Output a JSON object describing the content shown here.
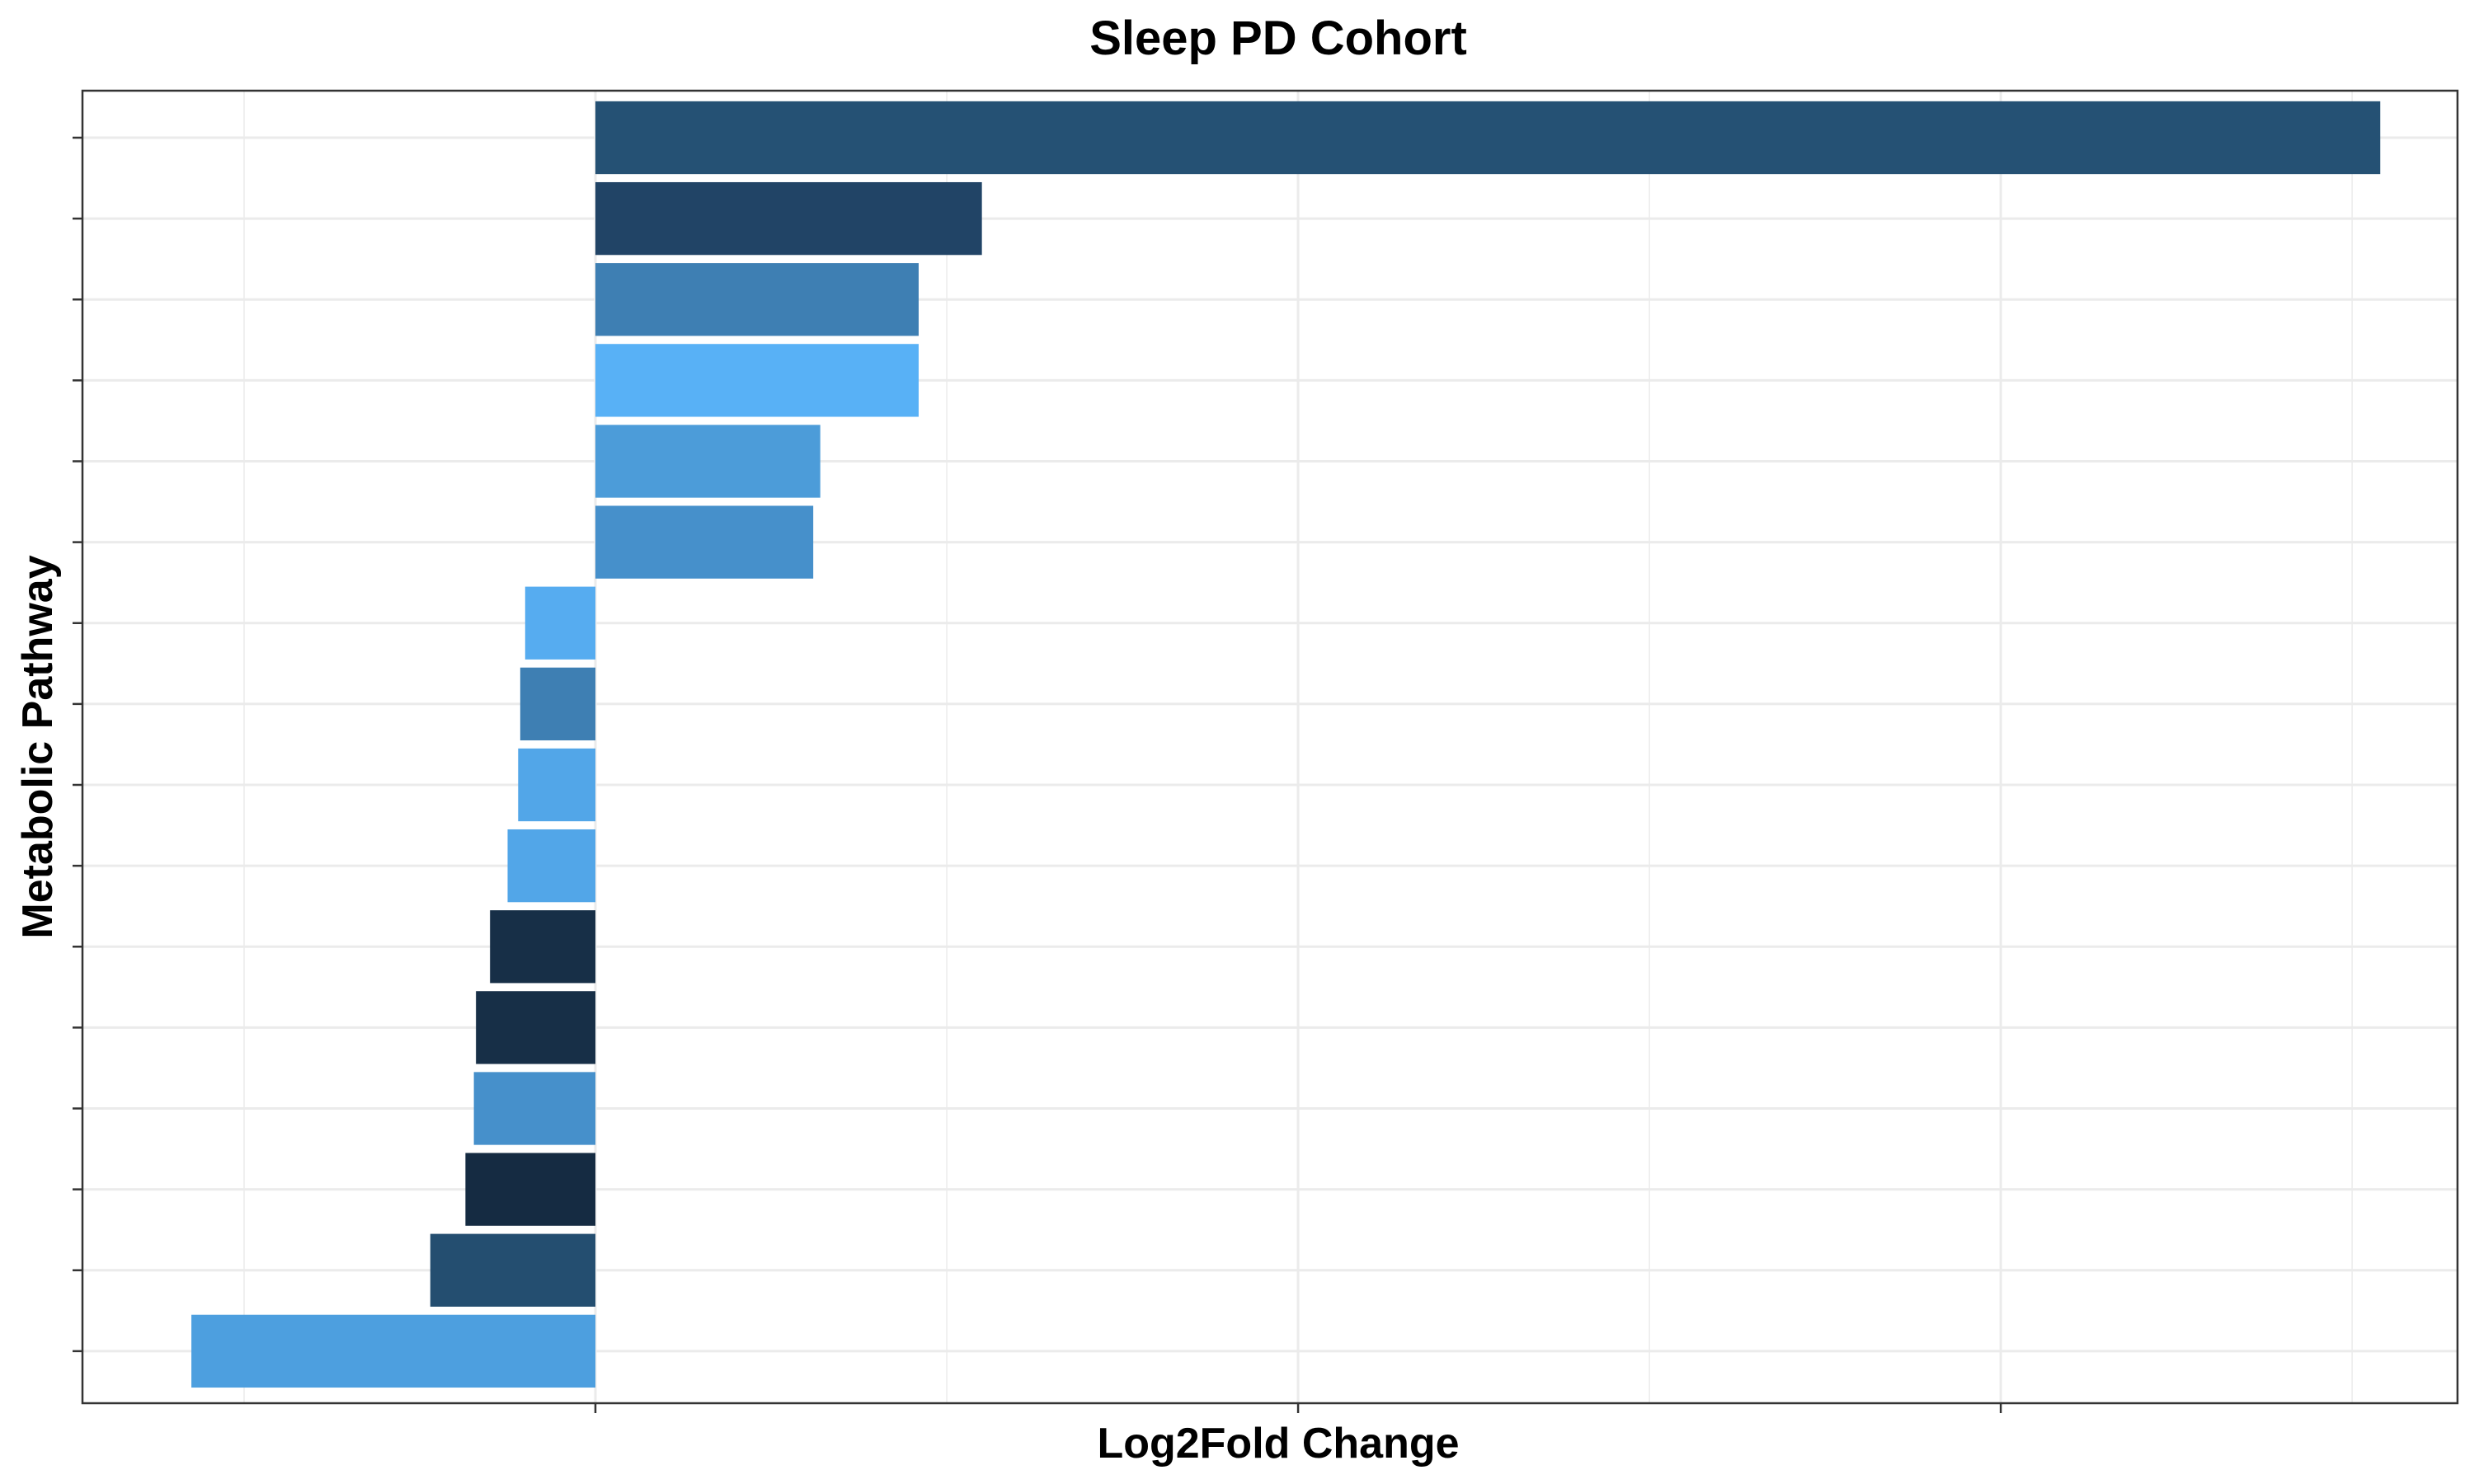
{
  "chart_data": {
    "type": "bar",
    "orientation": "horizontal",
    "title": "Sleep PD Cohort",
    "xlabel": "Log2Fold Change",
    "ylabel": "Metabolic Pathway",
    "xlim": [
      -0.73,
      2.65
    ],
    "grid": true,
    "legend": "none",
    "bars": [
      {
        "value": 2.54,
        "color": "#255174"
      },
      {
        "value": 0.55,
        "color": "#214466"
      },
      {
        "value": 0.46,
        "color": "#3e7fb3"
      },
      {
        "value": 0.46,
        "color": "#58b1f6"
      },
      {
        "value": 0.32,
        "color": "#4c9cd9"
      },
      {
        "value": 0.31,
        "color": "#4690cb"
      },
      {
        "value": -0.1,
        "color": "#56acf0"
      },
      {
        "value": -0.107,
        "color": "#3e7fb3"
      },
      {
        "value": -0.11,
        "color": "#52a6e8"
      },
      {
        "value": -0.125,
        "color": "#52a6e8"
      },
      {
        "value": -0.15,
        "color": "#172f47"
      },
      {
        "value": -0.17,
        "color": "#172f47"
      },
      {
        "value": -0.173,
        "color": "#4690cb"
      },
      {
        "value": -0.185,
        "color": "#152b42"
      },
      {
        "value": -0.235,
        "color": "#244e70"
      },
      {
        "value": -0.575,
        "color": "#4d9fdf"
      }
    ]
  }
}
